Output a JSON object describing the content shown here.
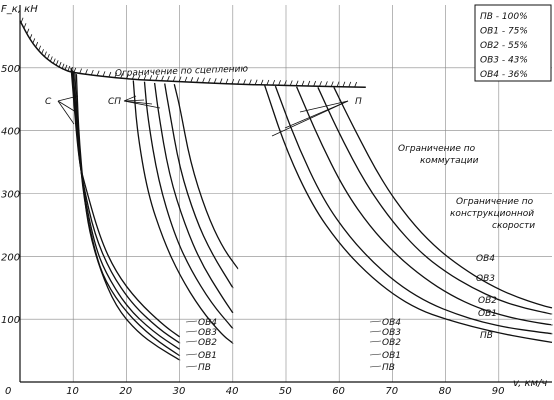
{
  "chart_data": {
    "type": "line",
    "ylabel": "F_к, кН",
    "xlabel": "v, км/ч",
    "x_ticks": [
      0,
      10,
      20,
      30,
      40,
      50,
      60,
      70,
      80,
      90
    ],
    "y_ticks": [
      100,
      200,
      300,
      400,
      500
    ],
    "xlim": [
      0,
      100
    ],
    "ylim": [
      0,
      600
    ],
    "grid": true,
    "legend": {
      "placement": "top-right",
      "entries": [
        "ПВ - 100%",
        "ОВ1 - 75%",
        "ОВ2 - 55%",
        "ОВ3 - 43%",
        "ОВ4 - 36%"
      ]
    },
    "annotations": {
      "adhesion": "Ограничение по сцеплению",
      "commutation": "Ограничение по коммутации",
      "design_speed": "Ограничение по конструкционной скорости",
      "group_c": "С",
      "group_sp": "СП",
      "group_p": "П"
    },
    "adhesion_limit": {
      "x": [
        0,
        2,
        4,
        6,
        8,
        10,
        20,
        30,
        40,
        50,
        60,
        65
      ],
      "y": [
        575,
        543,
        522,
        508,
        498,
        492,
        482,
        478,
        474,
        472,
        470,
        469
      ]
    },
    "series": [
      {
        "group": "С",
        "name": "ПВ",
        "x": [
          10.6,
          11,
          12,
          13,
          15,
          18,
          22,
          26,
          30
        ],
        "y": [
          490,
          400,
          300,
          240,
          180,
          120,
          80,
          55,
          35
        ]
      },
      {
        "group": "С",
        "name": "ОВ1",
        "x": [
          10.3,
          11,
          12,
          14,
          16,
          20,
          25,
          30
        ],
        "y": [
          492,
          380,
          290,
          210,
          160,
          110,
          70,
          42
        ]
      },
      {
        "group": "С",
        "name": "ОВ2",
        "x": [
          10.0,
          11,
          12,
          14,
          16,
          20,
          25,
          30
        ],
        "y": [
          495,
          370,
          300,
          220,
          175,
          120,
          80,
          52
        ]
      },
      {
        "group": "С",
        "name": "ОВ3",
        "x": [
          9.8,
          11,
          12,
          14,
          17,
          21,
          26,
          30
        ],
        "y": [
          497,
          360,
          310,
          235,
          175,
          125,
          85,
          62
        ]
      },
      {
        "group": "С",
        "name": "ОВ4",
        "x": [
          9.6,
          11,
          12,
          15,
          18,
          22,
          27,
          30
        ],
        "y": [
          500,
          355,
          320,
          230,
          175,
          130,
          90,
          72
        ]
      },
      {
        "group": "СП",
        "name": "ПВ",
        "x": [
          21.3,
          22,
          24,
          27,
          30,
          34,
          38,
          40
        ],
        "y": [
          480,
          400,
          300,
          225,
          170,
          115,
          75,
          62
        ]
      },
      {
        "group": "СП",
        "name": "ОВ1",
        "x": [
          23.4,
          24,
          26,
          29,
          32,
          36,
          40
        ],
        "y": [
          478,
          420,
          320,
          235,
          180,
          125,
          85
        ]
      },
      {
        "group": "СП",
        "name": "ОВ2",
        "x": [
          25.3,
          26,
          28,
          31,
          34,
          38,
          40
        ],
        "y": [
          476,
          430,
          330,
          250,
          190,
          135,
          110
        ]
      },
      {
        "group": "СП",
        "name": "ОВ3",
        "x": [
          27.2,
          28,
          30,
          33,
          36,
          40
        ],
        "y": [
          475,
          435,
          340,
          260,
          205,
          150
        ]
      },
      {
        "group": "СП",
        "name": "ОВ4",
        "x": [
          29.0,
          30,
          32,
          35,
          38,
          41
        ],
        "y": [
          474,
          440,
          350,
          270,
          215,
          180
        ]
      },
      {
        "group": "П",
        "name": "ПВ",
        "x": [
          46,
          50,
          55,
          60,
          65,
          70,
          75,
          80,
          85,
          90,
          95,
          100
        ],
        "y": [
          472,
          370,
          280,
          220,
          175,
          140,
          115,
          100,
          88,
          78,
          70,
          63
        ]
      },
      {
        "group": "П",
        "name": "ОВ1",
        "x": [
          48,
          52,
          57,
          62,
          67,
          72,
          77,
          82,
          87,
          92,
          97,
          100
        ],
        "y": [
          471,
          380,
          290,
          230,
          185,
          150,
          125,
          108,
          95,
          86,
          80,
          77
        ]
      },
      {
        "group": "П",
        "name": "ОВ2",
        "x": [
          52,
          56,
          61,
          66,
          71,
          76,
          81,
          86,
          91,
          96,
          100
        ],
        "y": [
          470,
          390,
          305,
          245,
          200,
          165,
          138,
          118,
          105,
          96,
          91
        ]
      },
      {
        "group": "П",
        "name": "ОВ3",
        "x": [
          56,
          60,
          65,
          70,
          75,
          80,
          85,
          90,
          95,
          100
        ],
        "y": [
          469,
          395,
          315,
          255,
          208,
          175,
          150,
          130,
          117,
          108
        ]
      },
      {
        "group": "П",
        "name": "ОВ4",
        "x": [
          59,
          63,
          68,
          73,
          78,
          83,
          88,
          93,
          98,
          100
        ],
        "y": [
          469,
          400,
          320,
          260,
          215,
          182,
          156,
          136,
          122,
          118
        ]
      }
    ],
    "series_labels_mid": [
      "ОВ4",
      "ОВ3",
      "ОВ2",
      "ОВ1",
      "ПВ"
    ],
    "series_labels_right": [
      "ОВ4",
      "ОВ3",
      "ОВ2",
      "ОВ1",
      "ПВ"
    ]
  }
}
